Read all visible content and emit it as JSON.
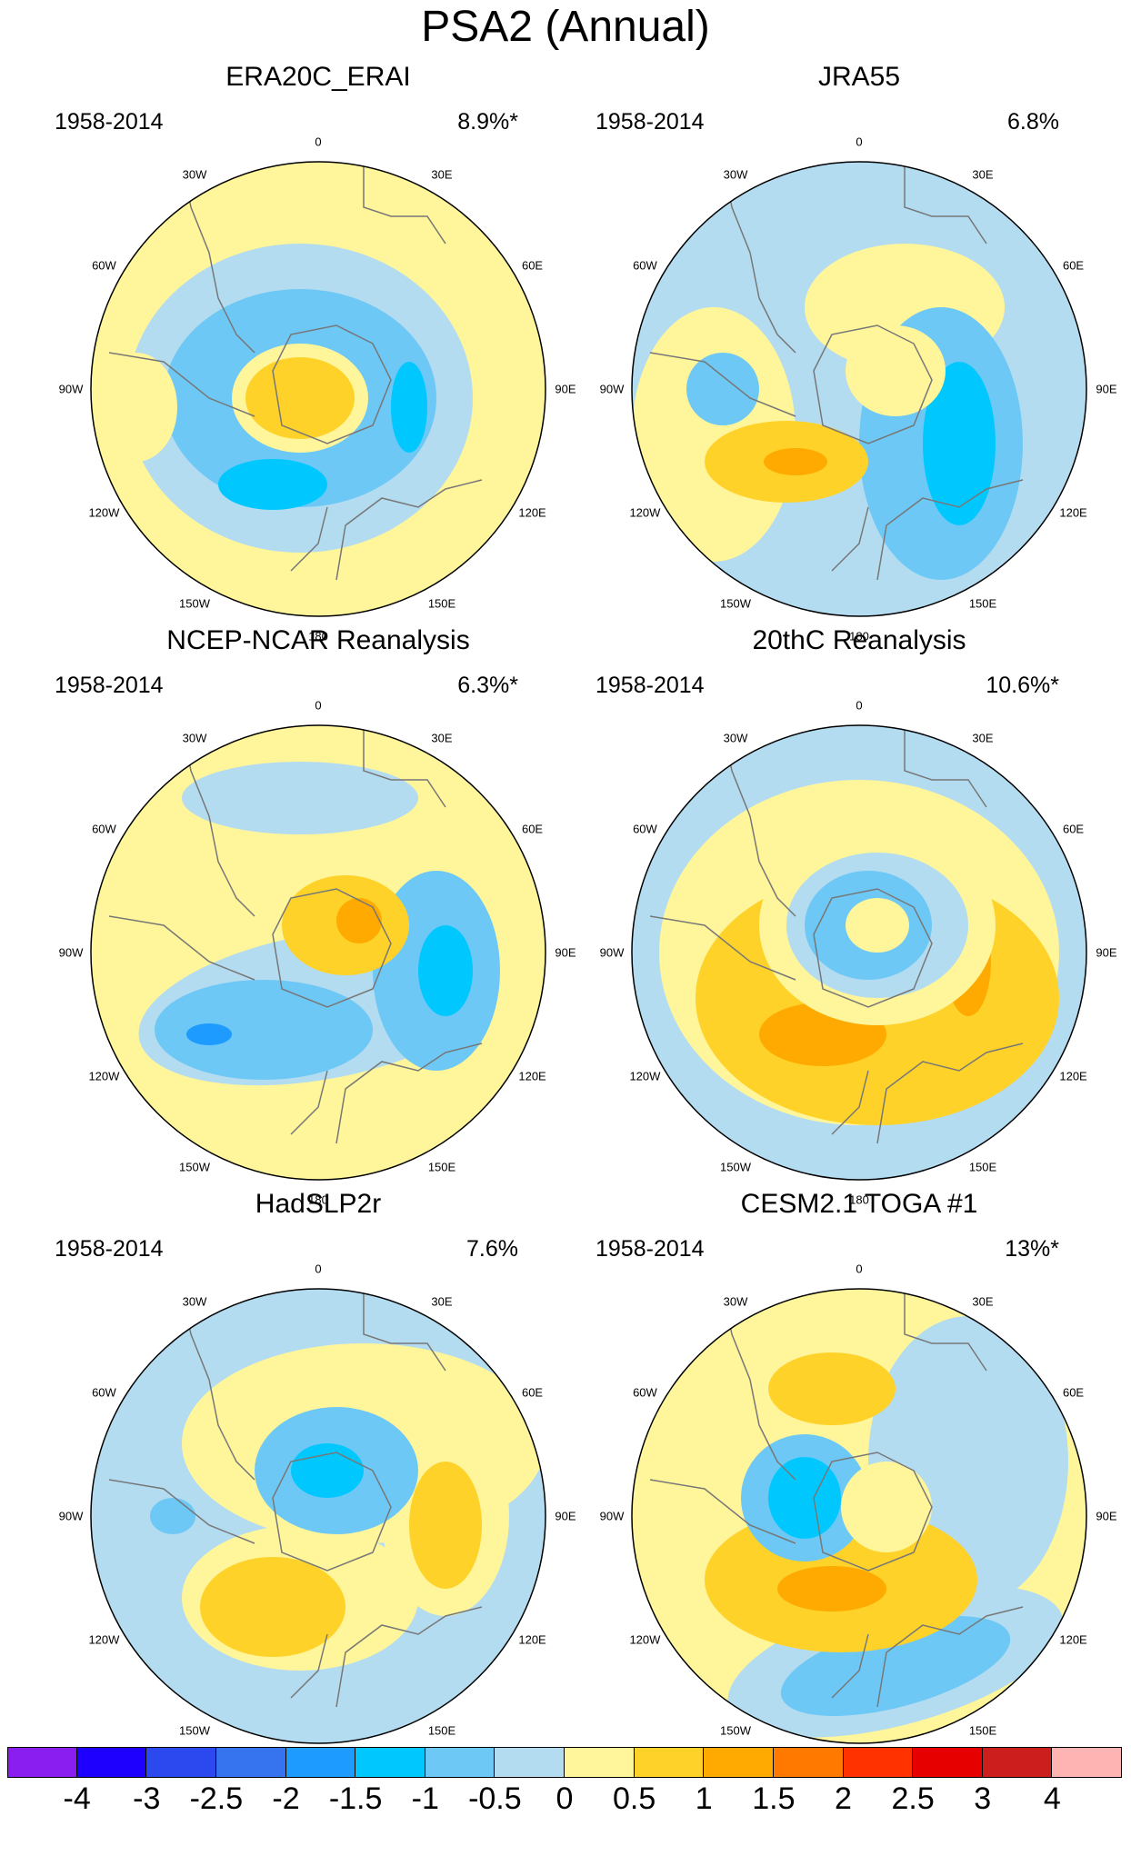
{
  "title": "PSA2 (Annual)",
  "lon_labels": [
    "0",
    "30E",
    "60E",
    "90E",
    "120E",
    "150E",
    "180",
    "150W",
    "120W",
    "90W",
    "60W",
    "30W"
  ],
  "panels": [
    {
      "name": "ERA20C_ERAI",
      "years": "1958-2014",
      "pct": "8.9%*"
    },
    {
      "name": "JRA55",
      "years": "1958-2014",
      "pct": "6.8%"
    },
    {
      "name": "NCEP-NCAR Reanalysis",
      "years": "1958-2014",
      "pct": "6.3%*"
    },
    {
      "name": "20thC Reanalysis",
      "years": "1958-2014",
      "pct": "10.6%*"
    },
    {
      "name": "HadSLP2r",
      "years": "1958-2014",
      "pct": "7.6%"
    },
    {
      "name": "CESM2.1 TOGA #1",
      "years": "1958-2014",
      "pct": "13%*"
    }
  ],
  "colorbar": {
    "colors": [
      "#8a1ef0",
      "#1e00ff",
      "#2b49ee",
      "#3673ee",
      "#1e9bff",
      "#00c8ff",
      "#6ec8f5",
      "#b4dcf0",
      "#fff59a",
      "#ffd22a",
      "#ffaa00",
      "#ff7800",
      "#ff3200",
      "#e60000",
      "#cd1e1e",
      "#ffb4b4"
    ],
    "labels": [
      "-4",
      "-3",
      "-2.5",
      "-2",
      "-1.5",
      "-1",
      "-0.5",
      "0",
      "0.5",
      "1",
      "1.5",
      "2",
      "2.5",
      "3",
      "4"
    ]
  },
  "style": {
    "coastline": "#777777",
    "pos1": "#fff59a",
    "pos2": "#ffd22a",
    "pos3": "#ffaa00",
    "pos4": "#ff7800",
    "neg1": "#b4dcf0",
    "neg2": "#6ec8f5",
    "neg3": "#00c8ff",
    "neg4": "#1e9bff"
  }
}
